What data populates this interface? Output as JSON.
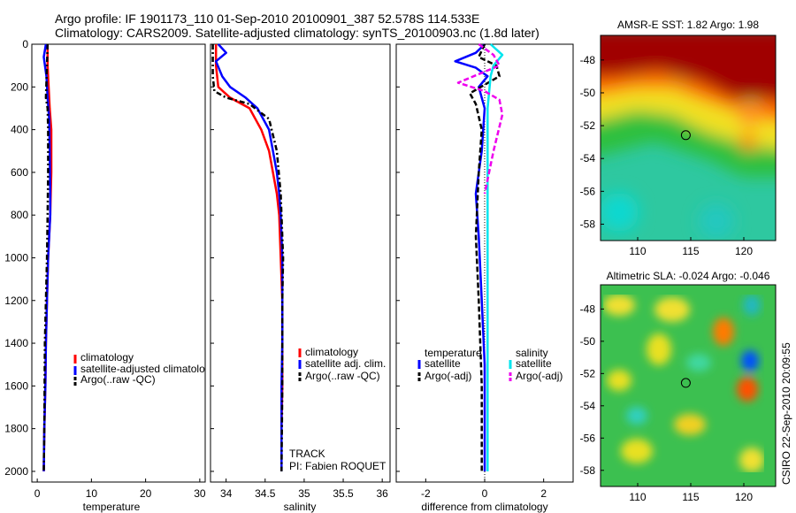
{
  "header": {
    "title_line1": "Argo profile: IF 1901173_110 01-Sep-2010 20100901_387 52.578S 114.533E",
    "title_line2": "Climatology: CARS2009. Satellite-adjusted climatology: synTS_20100903.nc (1.8d later)"
  },
  "annotations": {
    "track": "TRACK",
    "pi": "PI: Fabien ROQUET",
    "credit": "CSIRO 22-Sep-2010 20:09:55"
  },
  "colors": {
    "climatology": "#ff0000",
    "satellite": "#0000ff",
    "argo": "#000000",
    "sal_satellite": "#00e5ee",
    "sal_argo": "#ee00ee"
  },
  "chart_data": [
    {
      "type": "line",
      "id": "temperature",
      "xlabel": "temperature",
      "xlim": [
        -1,
        31
      ],
      "ylim": [
        0,
        2050
      ],
      "y_reversed": true,
      "xticks": [
        0,
        10,
        20,
        30
      ],
      "yticks": [
        0,
        200,
        400,
        600,
        800,
        1000,
        1200,
        1400,
        1600,
        1800,
        2000
      ],
      "legend": [
        "climatology",
        "satellite-adjusted climatolo",
        "Argo(..raw -QC)"
      ],
      "series": [
        {
          "name": "climatology",
          "x": [
            1.9,
            1.9,
            2.1,
            2.3,
            2.6,
            2.6,
            2.5,
            2.4,
            2.2,
            2.0,
            1.8,
            1.6,
            1.5,
            1.3,
            1.2
          ],
          "y": [
            0,
            100,
            200,
            300,
            400,
            600,
            700,
            800,
            900,
            1000,
            1200,
            1400,
            1600,
            1800,
            2000
          ]
        },
        {
          "name": "satellite-adjusted climatolo",
          "x": [
            1.6,
            1.2,
            1.7,
            1.9,
            2.2,
            2.3,
            2.4,
            2.4,
            2.2,
            2.0,
            1.8,
            1.6,
            1.5,
            1.3,
            1.2
          ],
          "y": [
            0,
            60,
            150,
            250,
            350,
            500,
            700,
            800,
            900,
            1000,
            1200,
            1400,
            1600,
            1800,
            2000
          ]
        },
        {
          "name": "Argo(..raw -QC)",
          "x": [
            1.9,
            1.8,
            1.6,
            1.9,
            2.0,
            2.0,
            1.9,
            1.8,
            1.6,
            1.4,
            1.3,
            1.2
          ],
          "y": [
            0,
            100,
            250,
            300,
            400,
            600,
            800,
            1000,
            1200,
            1400,
            1800,
            2000
          ]
        }
      ]
    },
    {
      "type": "line",
      "id": "salinity",
      "xlabel": "salinity",
      "xlim": [
        33.8,
        36.1
      ],
      "ylim": [
        0,
        2050
      ],
      "y_reversed": true,
      "xticks": [
        34,
        34.5,
        35,
        35.5,
        36
      ],
      "xticklabels": [
        "34",
        "34.5",
        "35",
        "35.5",
        "36"
      ],
      "yticks": [
        0,
        200,
        400,
        600,
        800,
        1000,
        1200,
        1400,
        1600,
        1800,
        2000
      ],
      "legend": [
        "climatology",
        "satellite adj. clim.",
        "Argo(..raw -QC)"
      ],
      "series": [
        {
          "name": "climatology",
          "x": [
            33.87,
            33.87,
            33.9,
            34.05,
            34.3,
            34.45,
            34.55,
            34.6,
            34.65,
            34.68,
            34.7,
            34.72,
            34.72,
            34.72,
            34.71
          ],
          "y": [
            0,
            100,
            200,
            250,
            300,
            400,
            500,
            600,
            700,
            800,
            1000,
            1200,
            1400,
            1600,
            1800
          ]
        },
        {
          "name": "satellite adj. clim.",
          "x": [
            33.9,
            34.0,
            33.87,
            33.95,
            34.05,
            34.25,
            34.4,
            34.55,
            34.6,
            34.65,
            34.68,
            34.7,
            34.72,
            34.72,
            34.72,
            34.71,
            34.71
          ],
          "y": [
            0,
            40,
            80,
            150,
            200,
            250,
            300,
            400,
            500,
            600,
            700,
            800,
            1000,
            1200,
            1400,
            1600,
            2000
          ]
        },
        {
          "name": "Argo(..raw -QC)",
          "x": [
            33.83,
            33.83,
            33.85,
            34.0,
            34.3,
            34.55,
            34.65,
            34.7,
            34.72,
            34.73,
            34.72,
            34.72,
            34.71
          ],
          "y": [
            0,
            150,
            220,
            250,
            280,
            350,
            500,
            700,
            900,
            1000,
            1200,
            1600,
            2000
          ]
        }
      ]
    },
    {
      "type": "line",
      "id": "difference",
      "xlabel": "difference from climatology",
      "xlim": [
        -3,
        3
      ],
      "ylim": [
        0,
        2050
      ],
      "y_reversed": true,
      "xticks": [
        -2,
        0,
        2
      ],
      "yticks": [
        0,
        200,
        400,
        600,
        800,
        1000,
        1200,
        1400,
        1600,
        1800,
        2000
      ],
      "legend_headers": [
        "temperature",
        "salinity"
      ],
      "legend": [
        "satellite",
        "Argo(-adj)",
        "satellite",
        "Argo(-adj)"
      ],
      "series": [
        {
          "name": "satellite",
          "group": "temperature",
          "x": [
            0,
            -0.3,
            -1.0,
            -0.3,
            0.1,
            -0.2,
            0.0,
            -0.1,
            -0.3,
            -0.2,
            -0.1,
            0.0,
            0.0,
            0.0
          ],
          "y": [
            0,
            40,
            80,
            110,
            150,
            200,
            300,
            500,
            700,
            900,
            1200,
            1500,
            1800,
            2000
          ]
        },
        {
          "name": "Argo(-adj)",
          "group": "temperature",
          "x": [
            0,
            -0.2,
            0.4,
            0.5,
            -0.5,
            -0.3,
            -0.1,
            -0.2,
            -0.3,
            -0.2,
            -0.1,
            -0.1
          ],
          "y": [
            0,
            60,
            100,
            150,
            230,
            280,
            400,
            600,
            900,
            1200,
            1600,
            2000
          ]
        },
        {
          "name": "satellite",
          "group": "salinity",
          "x": [
            0.2,
            0.6,
            0.3,
            0.2,
            0.1,
            0.1,
            0.1,
            0.1,
            0.1
          ],
          "y": [
            0,
            50,
            100,
            150,
            300,
            700,
            1200,
            1700,
            2000
          ]
        },
        {
          "name": "Argo(-adj)",
          "group": "salinity",
          "x": [
            -0.2,
            0.3,
            0.5,
            -0.9,
            0.0,
            0.5,
            0.6,
            0.3,
            0.0
          ],
          "y": [
            0,
            50,
            100,
            180,
            220,
            260,
            330,
            500,
            700
          ]
        }
      ]
    },
    {
      "type": "heatmap",
      "id": "sst",
      "title": "AMSR-E SST: 1.82  Argo: 1.98",
      "xlim": [
        106.5,
        123
      ],
      "ylim": [
        -59,
        -46.5
      ],
      "xticks": [
        110,
        115,
        120
      ],
      "yticks": [
        -48,
        -50,
        -52,
        -54,
        -56,
        -58
      ],
      "marker": {
        "lon": 114.533,
        "lat": -52.578
      }
    },
    {
      "type": "heatmap",
      "id": "sla",
      "title": "Altimetric SLA: -0.024  Argo: -0.046",
      "xlim": [
        106.5,
        123
      ],
      "ylim": [
        -59,
        -46.5
      ],
      "xticks": [
        110,
        115,
        120
      ],
      "yticks": [
        -48,
        -50,
        -52,
        -54,
        -56,
        -58
      ],
      "marker": {
        "lon": 114.533,
        "lat": -52.578
      }
    }
  ]
}
